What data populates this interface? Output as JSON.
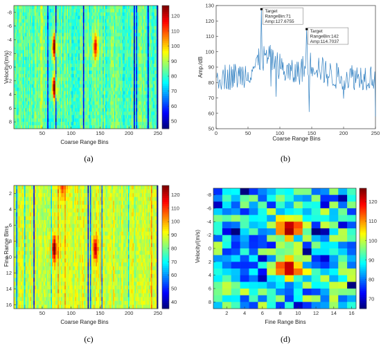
{
  "colormap": [
    "#000080",
    "#0000ff",
    "#0080ff",
    "#00ffff",
    "#80ff80",
    "#ffff00",
    "#ff8000",
    "#ff0000",
    "#800000"
  ],
  "chart_data": [
    {
      "id": "a",
      "type": "heatmap",
      "caption": "(a)",
      "xlabel": "Coarse Range Bins",
      "ylabel": "Velocity/(m/s)",
      "xlim": [
        1,
        250
      ],
      "ylim": [
        -9,
        9
      ],
      "xticks": [
        "50",
        "100",
        "150",
        "200",
        "250"
      ],
      "yticks": [
        "-8",
        "-6",
        "-4",
        "-2",
        "0",
        "2",
        "4",
        "6",
        "8"
      ],
      "colorbar_ticks": [
        "50",
        "60",
        "70",
        "80",
        "90",
        "100",
        "110",
        "120"
      ],
      "clim": [
        45,
        127
      ],
      "background_mean": 82,
      "peaks": [
        {
          "x": 71,
          "y": -3,
          "value": 127
        },
        {
          "x": 71,
          "y": 3,
          "value": 127
        },
        {
          "x": 142,
          "y": -3,
          "value": 115
        }
      ]
    },
    {
      "id": "b",
      "type": "line",
      "caption": "(b)",
      "xlabel": "Coarse Range Bins",
      "ylabel": "Amp./dB",
      "xlim": [
        0,
        250
      ],
      "ylim": [
        50,
        130
      ],
      "xticks": [
        "0",
        "50",
        "100",
        "150",
        "200",
        "250"
      ],
      "yticks": [
        "50",
        "60",
        "70",
        "80",
        "90",
        "100",
        "110",
        "120",
        "130"
      ],
      "annotations": [
        {
          "lines": [
            "Target",
            "RangeBin:71",
            "Amp:127.6755"
          ],
          "x": 71,
          "y": 127.6755
        },
        {
          "lines": [
            "Target",
            "RangeBin:142",
            "Amp:114.7037"
          ],
          "x": 142,
          "y": 114.7037
        }
      ],
      "baseline_mean": 84
    },
    {
      "id": "c",
      "type": "heatmap",
      "caption": "(c)",
      "xlabel": "Coarse Range Bins",
      "ylabel": "Fine Range Bins",
      "xlim": [
        1,
        250
      ],
      "ylim": [
        1,
        16.5
      ],
      "xticks": [
        "50",
        "100",
        "150",
        "200",
        "250"
      ],
      "yticks": [
        "2",
        "4",
        "6",
        "8",
        "10",
        "12",
        "14",
        "16"
      ],
      "colorbar_ticks": [
        "40",
        "50",
        "60",
        "70",
        "80",
        "90",
        "100",
        "110",
        "120"
      ],
      "clim": [
        35,
        127
      ],
      "background_mean": 88,
      "peaks": [
        {
          "x": 71,
          "y": 9,
          "value": 127
        },
        {
          "x": 142,
          "y": 9,
          "value": 118
        },
        {
          "x": 85,
          "y": 1,
          "value": 108
        }
      ]
    },
    {
      "id": "d",
      "type": "heatmap",
      "caption": "(d)",
      "xlabel": "Fine Range Bins",
      "ylabel": "Velocity/(m/s)",
      "xlim": [
        0.5,
        16.5
      ],
      "ylim": [
        -9,
        9
      ],
      "xticks": [
        "2",
        "4",
        "6",
        "8",
        "10",
        "12",
        "14",
        "16"
      ],
      "yticks": [
        "-8",
        "-6",
        "-4",
        "-2",
        "0",
        "2",
        "4",
        "6",
        "8"
      ],
      "colorbar_ticks": [
        "70",
        "80",
        "90",
        "100",
        "110",
        "120"
      ],
      "clim": [
        65,
        127
      ],
      "background_mean": 88,
      "peaks": [
        {
          "x": 9,
          "y": -3,
          "value": 127
        },
        {
          "x": 9,
          "y": 3,
          "value": 127
        }
      ]
    }
  ]
}
